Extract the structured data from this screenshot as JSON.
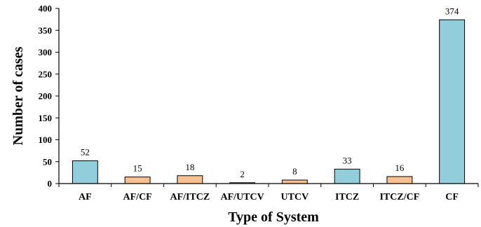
{
  "chart_data": {
    "type": "bar",
    "title": "",
    "xlabel": "Type of System",
    "ylabel": "Number of cases",
    "ylim": [
      0,
      400
    ],
    "yticks": [
      0,
      50,
      100,
      150,
      200,
      250,
      300,
      350,
      400
    ],
    "categories": [
      "AF",
      "AF/CF",
      "AF/ITCZ",
      "AF/UTCV",
      "UTCV",
      "ITCZ",
      "ITCZ/CF",
      "CF"
    ],
    "values": [
      52,
      15,
      18,
      2,
      8,
      33,
      16,
      374
    ],
    "bar_colors": [
      "#92cddc",
      "#fac090",
      "#fac090",
      "#fac090",
      "#fac090",
      "#92cddc",
      "#fac090",
      "#92cddc"
    ],
    "edge_color": "#000000",
    "grid": false,
    "legend": "none"
  }
}
